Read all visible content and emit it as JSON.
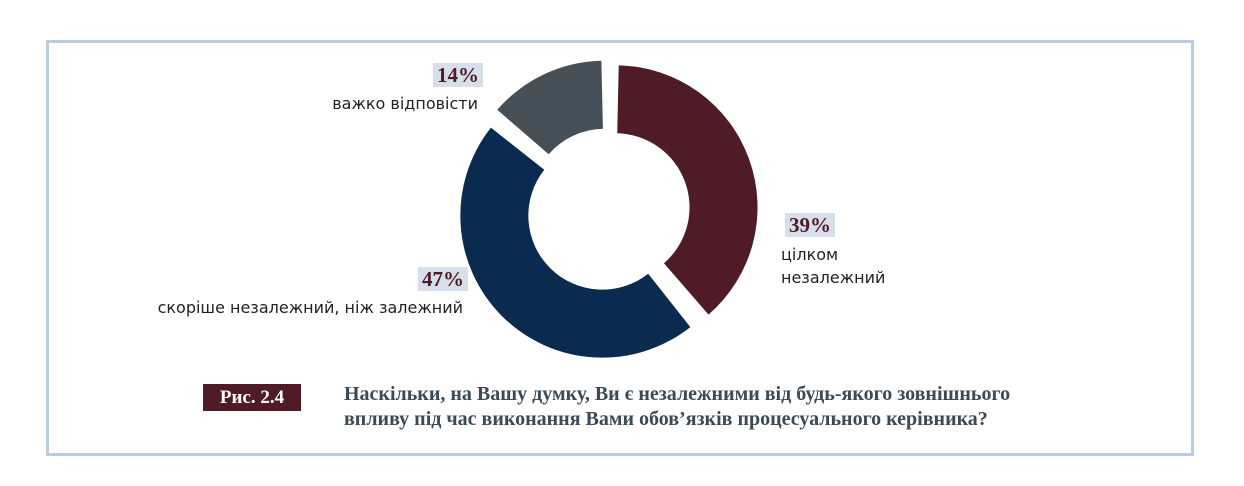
{
  "figure": {
    "badge": "Рис. 2.4",
    "caption_line1": "Наскільки, на Вашу думку, Ви є незалежними від будь-якого зовнішнього",
    "caption_line2": "впливу під час виконання Вами обов’язків процесуального керівника?"
  },
  "chart_data": {
    "type": "pie",
    "donut": true,
    "title": "",
    "slices": [
      {
        "label_lines": [
          "цілком",
          "незалежний"
        ],
        "value": 39,
        "value_label": "39%",
        "color": "#4f1b27"
      },
      {
        "label_lines": [
          "скоріше незалежний, ніж залежний"
        ],
        "value": 47,
        "value_label": "47%",
        "color": "#0b2a4f"
      },
      {
        "label_lines": [
          "важко відповісти"
        ],
        "value": 14,
        "value_label": "14%",
        "color": "#454f55"
      }
    ],
    "colors": {
      "label_background": "#d7dfea",
      "label_text": "#4f1b27",
      "frame_border": "#b9cde2"
    }
  }
}
